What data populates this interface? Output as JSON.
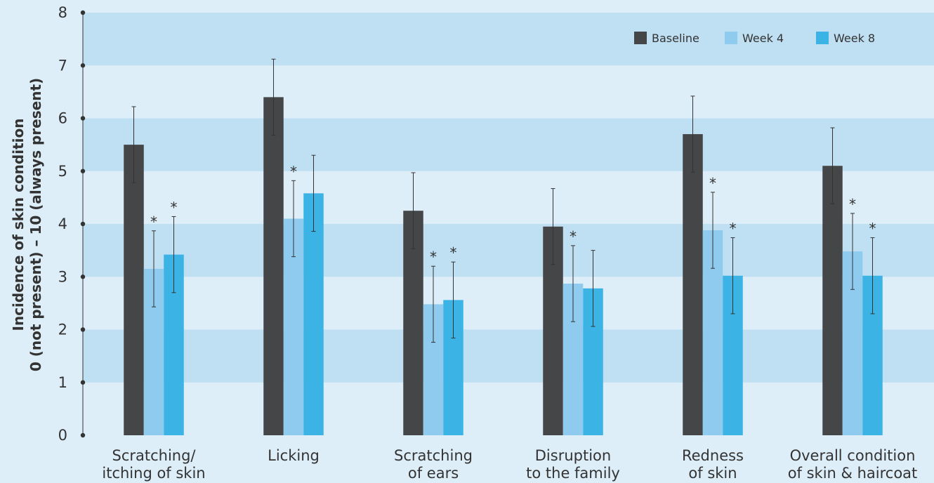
{
  "chart_data": {
    "type": "bar",
    "ylabel_lines": [
      "Incidence of skin condition",
      "0 (not present) – 10 (always present)"
    ],
    "ylim": [
      0,
      8
    ],
    "yticks": [
      "0",
      "1",
      "2",
      "3",
      "4",
      "5",
      "6",
      "7",
      "8"
    ],
    "grid": "alternating horizontal bands",
    "legend_position": "top-right",
    "categories": [
      [
        "Scratching/",
        "itching of skin"
      ],
      [
        "Licking"
      ],
      [
        "Scratching",
        "of ears"
      ],
      [
        "Disruption",
        "to the family"
      ],
      [
        "Redness",
        "of skin"
      ],
      [
        "Overall condition",
        "of skin & haircoat"
      ]
    ],
    "series": [
      {
        "name": "Baseline",
        "color": "#454647",
        "values": [
          5.5,
          6.4,
          4.25,
          3.95,
          5.7,
          5.1
        ],
        "errors": [
          0.72,
          0.72,
          0.72,
          0.72,
          0.72,
          0.72
        ],
        "significant": [
          false,
          false,
          false,
          false,
          false,
          false
        ]
      },
      {
        "name": "Week 4",
        "color": "#8ecbee",
        "values": [
          3.15,
          4.1,
          2.48,
          2.87,
          3.88,
          3.48
        ],
        "errors": [
          0.72,
          0.72,
          0.72,
          0.72,
          0.72,
          0.72
        ],
        "significant": [
          true,
          true,
          true,
          true,
          true,
          true
        ]
      },
      {
        "name": "Week 8",
        "color": "#3bb3e5",
        "values": [
          3.42,
          4.58,
          2.56,
          2.78,
          3.02,
          3.02
        ],
        "errors": [
          0.72,
          0.72,
          0.72,
          0.72,
          0.72,
          0.72
        ],
        "significant": [
          true,
          false,
          true,
          false,
          true,
          true
        ]
      }
    ],
    "significance_marker": "*",
    "colors": {
      "band_dark": "#bfdff2",
      "band_light": "#ddeef8",
      "axis": "#333333"
    }
  }
}
